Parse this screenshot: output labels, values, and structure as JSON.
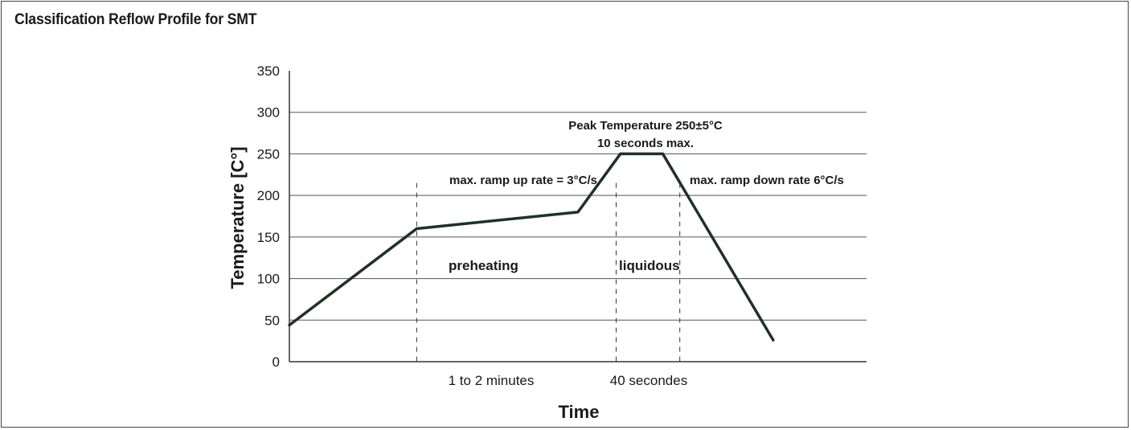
{
  "panel": {
    "title": "Classification Reflow Profile for SMT"
  },
  "chart_data": {
    "type": "line",
    "title": "Classification Reflow Profile for SMT",
    "xlabel": "Time",
    "ylabel": "Temperature [C°]",
    "ylim": [
      0,
      350
    ],
    "yticks": [
      0,
      50,
      100,
      150,
      200,
      250,
      300,
      350
    ],
    "grid": "horizontal",
    "legend": "none",
    "line_color": "#1e3228",
    "series": [
      {
        "points": [
          {
            "t": 0,
            "temp": 44
          },
          {
            "t": 15,
            "temp": 160
          },
          {
            "t": 34,
            "temp": 180
          },
          {
            "t": 39,
            "temp": 250
          },
          {
            "t": 44,
            "temp": 250
          },
          {
            "t": 57,
            "temp": 26
          }
        ]
      }
    ],
    "xlim": [
      0,
      68
    ],
    "markers": [
      15,
      38.5,
      46
    ],
    "annotations": {
      "peak_line1": "Peak Temperature 250±5°C",
      "peak_line2": "10 seconds max.",
      "ramp_up": "max. ramp up rate = 3°C/s",
      "ramp_down": "max. ramp down rate 6°C/s",
      "preheating": "preheating",
      "liquidous": "liquidous"
    },
    "x_interval_labels": {
      "preheat_duration": "1 to 2 minutes",
      "liquidous_duration": "40 secondes"
    }
  }
}
